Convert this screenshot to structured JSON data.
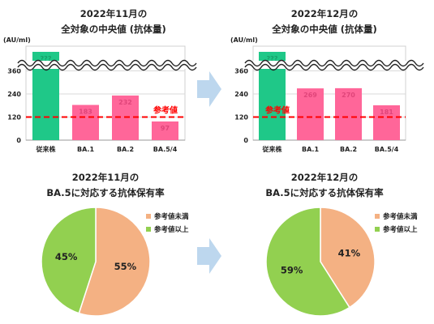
{
  "colors": {
    "green": "#1fc888",
    "pink": "#ff6699",
    "ref_line": "#ff0000",
    "orange": "#f4b183",
    "lightgreen": "#92d050",
    "arrow": "#bdd7ee"
  },
  "chart_data": [
    {
      "type": "bar",
      "title_line1": "2022年11月の",
      "title_line2": "全対象の中央値 (抗体量)",
      "ylabel": "(AU/ml)",
      "yticks": [
        "0",
        "120",
        "240",
        "360"
      ],
      "ylim": [
        0,
        360
      ],
      "axis_break": true,
      "categories": [
        "従来株",
        "BA.1",
        "BA.2",
        "BA.5/4"
      ],
      "values": [
        null,
        183,
        232,
        97
      ],
      "value_labels": [
        "???",
        "183",
        "232",
        "97"
      ],
      "reference": {
        "label": "参考値",
        "value": 120
      }
    },
    {
      "type": "bar",
      "title_line1": "2022年12月の",
      "title_line2": "全対象の中央値 (抗体量)",
      "ylabel": "(AU/ml)",
      "yticks": [
        "0",
        "120",
        "240",
        "360"
      ],
      "ylim": [
        0,
        360
      ],
      "axis_break": true,
      "categories": [
        "従来株",
        "BA.1",
        "BA.2",
        "BA.5/4"
      ],
      "values": [
        null,
        269,
        270,
        181
      ],
      "value_labels": [
        "???",
        "269",
        "270",
        "181"
      ],
      "reference": {
        "label": "参考値",
        "value": 120
      }
    },
    {
      "type": "pie",
      "title_line1": "2022年11月の",
      "title_line2": "BA.5に対応する抗体保有率",
      "slices": [
        {
          "label": "参考値未満",
          "value": 55,
          "text": "55%"
        },
        {
          "label": "参考値以上",
          "value": 45,
          "text": "45%"
        }
      ]
    },
    {
      "type": "pie",
      "title_line1": "2022年12月の",
      "title_line2": "BA.5に対応する抗体保有率",
      "slices": [
        {
          "label": "参考値未満",
          "value": 41,
          "text": "41%"
        },
        {
          "label": "参考値以上",
          "value": 59,
          "text": "59%"
        }
      ]
    }
  ]
}
